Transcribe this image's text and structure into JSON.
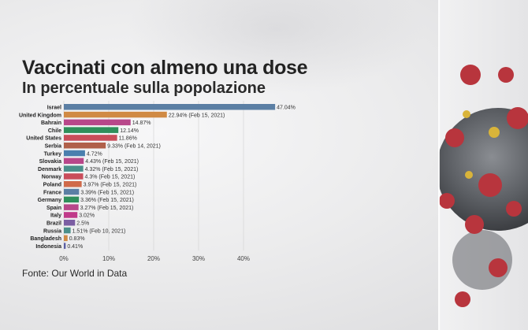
{
  "title": "Vaccinati con almeno una dose",
  "subtitle": "In percentuale sulla popolazione",
  "source": "Fonte: Our World in Data",
  "colors": {
    "israel": "#5b7fa4",
    "orange": "#d08a44",
    "magenta": "#b8478a",
    "green": "#2f8f5b",
    "red": "#c94d5a",
    "purple": "#7b5ea3",
    "teal": "#4a8f8a"
  },
  "chart_data": {
    "type": "bar",
    "orientation": "horizontal",
    "categories": [
      "Israel",
      "United Kingdom",
      "Bahrain",
      "Chile",
      "United States",
      "Serbia",
      "Turkey",
      "Slovakia",
      "Denmark",
      "Norway",
      "Poland",
      "France",
      "Germany",
      "Spain",
      "Italy",
      "Brazil",
      "Russia",
      "Bangladesh",
      "Indonesia"
    ],
    "values": [
      47.04,
      22.94,
      14.87,
      12.14,
      11.86,
      9.33,
      4.72,
      4.43,
      4.32,
      4.3,
      3.97,
      3.39,
      3.36,
      3.27,
      3.02,
      2.5,
      1.51,
      0.83,
      0.41
    ],
    "labels": [
      "47.04%",
      "22.94% (Feb 15, 2021)",
      "14.87%",
      "12.14%",
      "11.86%",
      "9.33% (Feb 14, 2021)",
      "4.72%",
      "4.43% (Feb 15, 2021)",
      "4.32% (Feb 15, 2021)",
      "4.3% (Feb 15, 2021)",
      "3.97% (Feb 15, 2021)",
      "3.39% (Feb 15, 2021)",
      "3.36% (Feb 15, 2021)",
      "3.27% (Feb 15, 2021)",
      "3.02%",
      "2.5%",
      "1.51% (Feb 10, 2021)",
      "0.83%",
      "0.41%"
    ],
    "bar_colors": [
      "#5b7fa4",
      "#d08a44",
      "#b8478a",
      "#2f8f5b",
      "#c94d5a",
      "#b0604a",
      "#4a7fae",
      "#b8478a",
      "#4a8f8a",
      "#c94d5a",
      "#d06a4a",
      "#5b7fa4",
      "#2f8f5b",
      "#b8478a",
      "#c03a8a",
      "#7b5ea3",
      "#4a8f8a",
      "#d08a44",
      "#5b5ea3"
    ],
    "xticks": [
      "0%",
      "10%",
      "20%",
      "30%",
      "40%"
    ],
    "xlim": [
      0,
      50
    ],
    "grid": true
  }
}
